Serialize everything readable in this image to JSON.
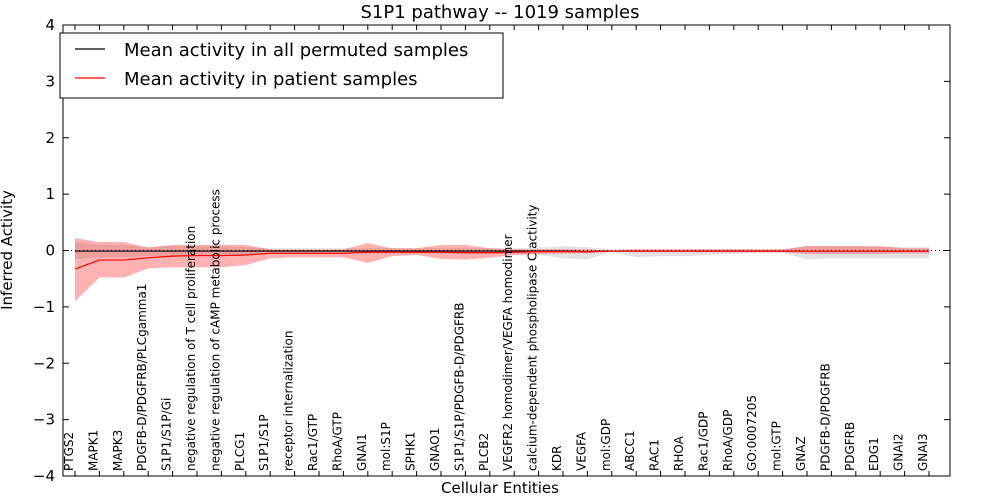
{
  "chart_data": {
    "type": "line",
    "title": "S1P1 pathway -- 1019 samples",
    "xlabel": "Cellular Entities",
    "ylabel": "Inferred Activity",
    "ylim": [
      -4,
      4
    ],
    "yticks": [
      "4",
      "3",
      "2",
      "1",
      "0",
      "−1",
      "−2",
      "−3",
      "−4"
    ],
    "ytick_values": [
      4,
      3,
      2,
      1,
      0,
      -1,
      -2,
      -3,
      -4
    ],
    "reference_line": 0,
    "legend": {
      "position": "top-left",
      "entries": [
        {
          "label": "Mean activity in all permuted samples",
          "color": "#000000"
        },
        {
          "label": "Mean activity in patient samples",
          "color": "#ff0000"
        }
      ]
    },
    "categories": [
      "PTGS2",
      "MAPK1",
      "MAPK3",
      "PDGFB-D/PDGFRB/PLCgamma1",
      "S1P1/S1P/Gi",
      "negative regulation of T cell proliferation",
      "negative regulation of cAMP metabolic process",
      "PLCG1",
      "S1P1/S1P",
      "receptor internalization",
      "Rac1/GTP",
      "RhoA/GTP",
      "GNAI1",
      "mol:S1P",
      "SPHK1",
      "GNAO1",
      "S1P1/S1P/PDGFB-D/PDGFRB",
      "PLCB2",
      "VEGFR2 homodimer/VEGFA homodimer",
      "calcium-dependent phospholipase C activity",
      "KDR",
      "VEGFA",
      "mol:GDP",
      "ABCC1",
      "RAC1",
      "RHOA",
      "Rac1/GDP",
      "RhoA/GDP",
      "GO:0007205",
      "mol:GTP",
      "GNAZ",
      "PDGFB-D/PDGFRB",
      "PDGFRB",
      "EDG1",
      "GNAI2",
      "GNAI3"
    ],
    "series": [
      {
        "name": "Mean activity in all permuted samples",
        "color": "#000000",
        "values": [
          -0.01,
          -0.01,
          -0.01,
          -0.01,
          -0.01,
          -0.01,
          -0.01,
          -0.01,
          -0.01,
          -0.01,
          -0.01,
          -0.01,
          -0.01,
          -0.01,
          -0.01,
          -0.01,
          -0.01,
          -0.01,
          -0.01,
          -0.01,
          -0.01,
          -0.02,
          -0.01,
          -0.01,
          -0.01,
          -0.01,
          -0.01,
          -0.01,
          -0.01,
          -0.01,
          -0.01,
          -0.01,
          -0.01,
          -0.01,
          -0.01,
          -0.01
        ],
        "band_upper": [
          0.15,
          0.1,
          0.1,
          0.06,
          0.08,
          0.08,
          0.08,
          0.06,
          0.04,
          0.04,
          0.04,
          0.04,
          0.04,
          0.04,
          0.04,
          0.04,
          0.04,
          0.04,
          0.04,
          0.05,
          0.08,
          0.06,
          0.02,
          0.03,
          0.03,
          0.03,
          0.03,
          0.03,
          0.02,
          0.02,
          0.08,
          0.07,
          0.07,
          0.06,
          0.06,
          0.06
        ],
        "band_lower": [
          -0.15,
          -0.12,
          -0.12,
          -0.1,
          -0.1,
          -0.1,
          -0.1,
          -0.08,
          -0.06,
          -0.06,
          -0.06,
          -0.06,
          -0.06,
          -0.06,
          -0.06,
          -0.06,
          -0.06,
          -0.06,
          -0.06,
          -0.08,
          -0.14,
          -0.16,
          -0.02,
          -0.12,
          -0.1,
          -0.1,
          -0.08,
          -0.06,
          -0.04,
          -0.04,
          -0.16,
          -0.14,
          -0.14,
          -0.14,
          -0.14,
          -0.14
        ]
      },
      {
        "name": "Mean activity in patient samples",
        "color": "#ff0000",
        "values": [
          -0.33,
          -0.17,
          -0.17,
          -0.13,
          -0.1,
          -0.09,
          -0.09,
          -0.08,
          -0.05,
          -0.05,
          -0.05,
          -0.05,
          -0.03,
          -0.03,
          -0.03,
          -0.03,
          -0.04,
          -0.04,
          -0.03,
          -0.02,
          -0.02,
          -0.02,
          -0.01,
          -0.01,
          -0.01,
          -0.01,
          -0.01,
          -0.01,
          -0.01,
          -0.01,
          -0.01,
          -0.01,
          -0.01,
          -0.01,
          -0.01,
          -0.01
        ],
        "band_upper": [
          0.22,
          0.15,
          0.15,
          0.05,
          0.1,
          0.1,
          0.1,
          0.1,
          0.02,
          0.02,
          0.02,
          0.02,
          0.13,
          0.04,
          0.04,
          0.1,
          0.1,
          0.04,
          0.02,
          0.02,
          0.02,
          0.02,
          0.0,
          0.02,
          0.02,
          0.02,
          0.02,
          0.02,
          0.02,
          0.02,
          0.08,
          0.08,
          0.08,
          0.08,
          0.04,
          0.04
        ],
        "band_lower": [
          -0.9,
          -0.48,
          -0.48,
          -0.32,
          -0.3,
          -0.3,
          -0.3,
          -0.26,
          -0.14,
          -0.12,
          -0.12,
          -0.12,
          -0.22,
          -0.1,
          -0.08,
          -0.15,
          -0.16,
          -0.13,
          -0.08,
          -0.06,
          -0.05,
          -0.05,
          -0.02,
          -0.03,
          -0.03,
          -0.03,
          -0.03,
          -0.03,
          -0.03,
          -0.03,
          -0.06,
          -0.06,
          -0.06,
          -0.06,
          -0.05,
          -0.05
        ]
      }
    ]
  }
}
